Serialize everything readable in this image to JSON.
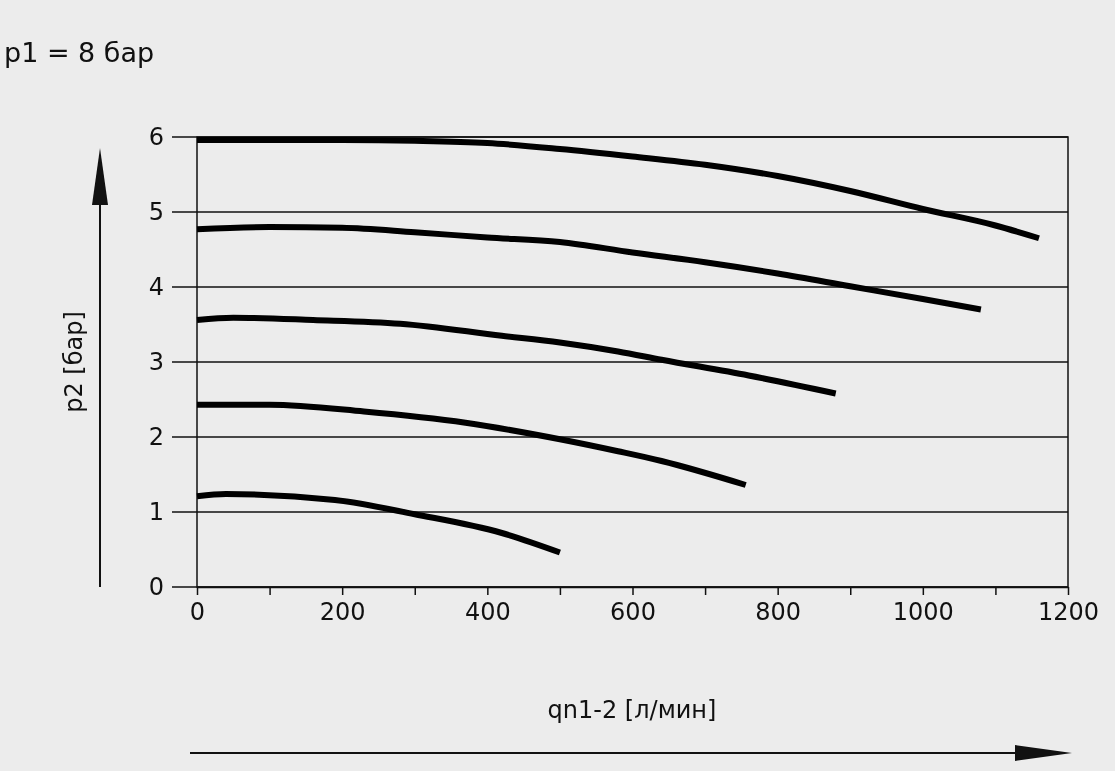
{
  "chart_data": {
    "type": "line",
    "title": "p1 = 8 бар",
    "xlabel": "qn1-2 [л/мин]",
    "ylabel": "p2 [бар]",
    "xlim": [
      0,
      1200
    ],
    "ylim": [
      0,
      6
    ],
    "xticks": [
      0,
      {
        "value": 100,
        "label": null
      },
      200,
      {
        "value": 300,
        "label": null
      },
      400,
      {
        "value": 500,
        "label": null
      },
      600,
      {
        "value": 700,
        "label": null
      },
      800,
      {
        "value": 900,
        "label": null
      },
      1000,
      {
        "value": 1100,
        "label": null
      },
      1200
    ],
    "yticks": [
      0,
      1,
      2,
      3,
      4,
      5,
      6
    ],
    "grid": "y",
    "marker": "none",
    "line_style": "solid",
    "series": [
      {
        "color": "#000000",
        "x": [
          0,
          200,
          300,
          400,
          500,
          600,
          700,
          800,
          900,
          1000,
          1100,
          1160
        ],
        "values": [
          5.96,
          5.96,
          5.95,
          5.92,
          5.84,
          5.74,
          5.63,
          5.48,
          5.28,
          5.04,
          4.82,
          4.65
        ]
      },
      {
        "color": "#000000",
        "x": [
          0,
          100,
          200,
          300,
          400,
          500,
          600,
          700,
          800,
          900,
          1000,
          1080
        ],
        "values": [
          4.77,
          4.8,
          4.79,
          4.73,
          4.66,
          4.6,
          4.46,
          4.33,
          4.18,
          4.01,
          3.84,
          3.7
        ]
      },
      {
        "color": "#000000",
        "x": [
          0,
          50,
          160,
          280,
          420,
          500,
          580,
          640,
          760,
          880
        ],
        "values": [
          3.56,
          3.59,
          3.56,
          3.51,
          3.35,
          3.26,
          3.14,
          3.03,
          2.82,
          2.58
        ]
      },
      {
        "color": "#000000",
        "x": [
          0,
          100,
          230,
          370,
          500,
          580,
          640,
          756
        ],
        "values": [
          2.43,
          2.43,
          2.34,
          2.19,
          1.97,
          1.81,
          1.68,
          1.36
        ]
      },
      {
        "color": "#000000",
        "x": [
          0,
          40,
          190,
          300,
          420,
          500
        ],
        "values": [
          1.21,
          1.24,
          1.16,
          0.97,
          0.72,
          0.46
        ]
      }
    ]
  }
}
